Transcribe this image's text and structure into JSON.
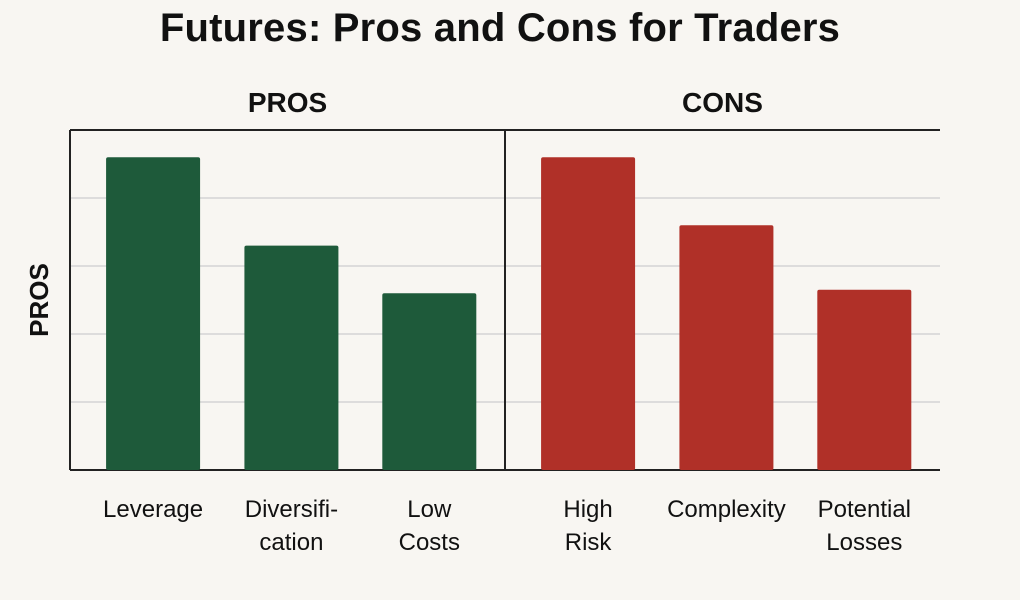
{
  "title": "Futures: Pros and Cons for Traders",
  "chart_data": {
    "type": "bar",
    "title": "Futures: Pros and Cons for Traders",
    "ylabel": "PROS",
    "xlabel": "",
    "ylim": [
      0,
      5
    ],
    "grid": true,
    "legend": "none",
    "panels": [
      {
        "label": "PROS",
        "color": "#1e5a3a",
        "categories": [
          "Leverage",
          "Diversification",
          "Low Costs"
        ],
        "category_lines": [
          [
            "Leverage"
          ],
          [
            "Diversifi-",
            "cation"
          ],
          [
            "Low",
            "Costs"
          ]
        ],
        "values": [
          4.6,
          3.3,
          2.6
        ]
      },
      {
        "label": "CONS",
        "color": "#b03028",
        "categories": [
          "High Risk",
          "Complexity",
          "Potential Losses"
        ],
        "category_lines": [
          [
            "High",
            "Risk"
          ],
          [
            "Complexity"
          ],
          [
            "Potential",
            "Losses"
          ]
        ],
        "values": [
          4.6,
          3.6,
          2.65
        ]
      }
    ]
  }
}
